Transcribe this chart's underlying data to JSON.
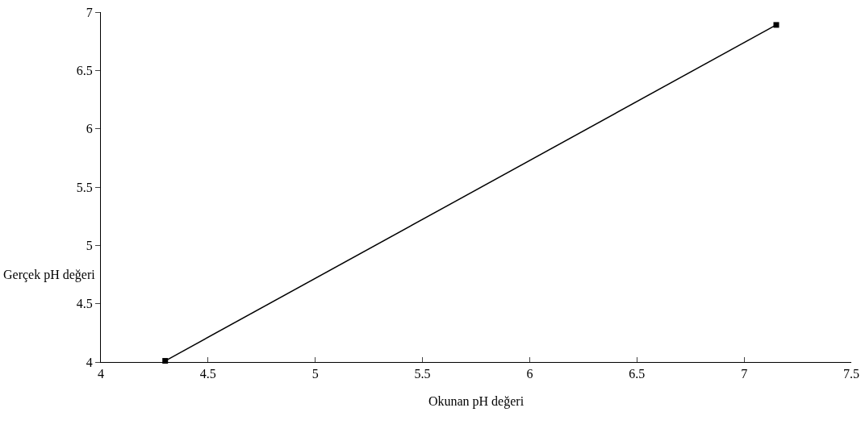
{
  "chart_data": {
    "type": "line",
    "xlabel": "Okunan pH değeri",
    "ylabel": "Gerçek pH değeri",
    "x": [
      4.3,
      7.15
    ],
    "series": [
      {
        "color": "#000000",
        "values": [
          4.01,
          6.89
        ]
      }
    ],
    "xlim": [
      4,
      7.5
    ],
    "xticks": [
      4,
      4.5,
      5,
      5.5,
      6,
      6.5,
      7,
      7.5
    ],
    "ylim": [
      4,
      7
    ],
    "yticks": [
      4,
      4.5,
      5,
      5.5,
      6,
      6.5,
      7
    ],
    "grid": false,
    "marker": "square",
    "line_style": "solid"
  }
}
